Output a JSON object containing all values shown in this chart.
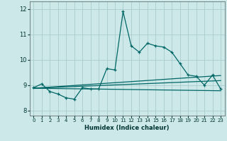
{
  "title": "",
  "xlabel": "Humidex (Indice chaleur)",
  "ylabel": "",
  "bg_color": "#cce8e8",
  "grid_color": "#aacccc",
  "line_color": "#006666",
  "xlim": [
    -0.5,
    23.5
  ],
  "ylim": [
    7.8,
    12.3
  ],
  "yticks": [
    8,
    9,
    10,
    11,
    12
  ],
  "xticks": [
    0,
    1,
    2,
    3,
    4,
    5,
    6,
    7,
    8,
    9,
    10,
    11,
    12,
    13,
    14,
    15,
    16,
    17,
    18,
    19,
    20,
    21,
    22,
    23
  ],
  "main_x": [
    0,
    1,
    2,
    3,
    4,
    5,
    6,
    7,
    8,
    9,
    10,
    11,
    12,
    13,
    14,
    15,
    16,
    17,
    18,
    19,
    20,
    21,
    22,
    23
  ],
  "main_y": [
    8.9,
    9.05,
    8.75,
    8.65,
    8.5,
    8.45,
    8.9,
    8.85,
    8.85,
    9.65,
    9.6,
    11.9,
    10.55,
    10.3,
    10.65,
    10.55,
    10.5,
    10.3,
    9.85,
    9.4,
    9.35,
    9.0,
    9.4,
    8.85
  ],
  "line1_x": [
    0,
    23
  ],
  "line1_y": [
    8.88,
    8.78
  ],
  "line2_x": [
    0,
    23
  ],
  "line2_y": [
    8.88,
    9.18
  ],
  "line3_x": [
    0,
    23
  ],
  "line3_y": [
    8.88,
    9.38
  ]
}
